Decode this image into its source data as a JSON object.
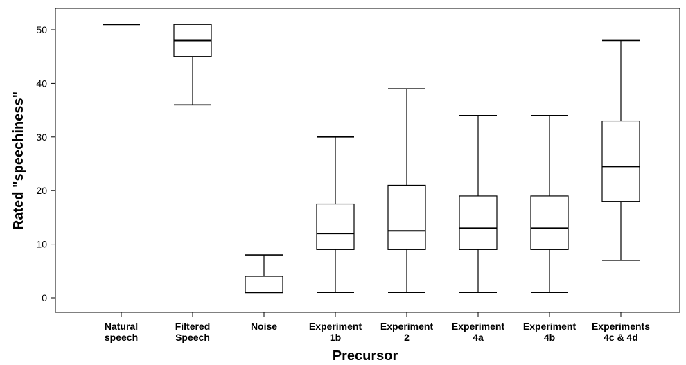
{
  "chart_data": {
    "type": "boxplot",
    "title": "",
    "xlabel": "Precursor",
    "ylabel": "Rated \"speechiness\"",
    "ylim": [
      -3,
      55
    ],
    "yticks": [
      0,
      10,
      20,
      30,
      40,
      50
    ],
    "grid": false,
    "categories": [
      [
        "Natural",
        "speech"
      ],
      [
        "Filtered",
        "Speech"
      ],
      [
        "Noise"
      ],
      [
        "Experiment",
        "1b"
      ],
      [
        "Experiment",
        "2"
      ],
      [
        "Experiment",
        "4a"
      ],
      [
        "Experiment",
        "4b"
      ],
      [
        "Experiments",
        "4c & 4d"
      ]
    ],
    "boxes": [
      {
        "min": 51,
        "q1": 51,
        "median": 51,
        "q3": 51,
        "max": 51
      },
      {
        "min": 36,
        "q1": 45,
        "median": 48,
        "q3": 51,
        "max": 51
      },
      {
        "min": 1,
        "q1": 1,
        "median": 1,
        "q3": 4,
        "max": 8
      },
      {
        "min": 1,
        "q1": 9,
        "median": 12,
        "q3": 17.5,
        "max": 30
      },
      {
        "min": 1,
        "q1": 9,
        "median": 12.5,
        "q3": 21,
        "max": 39
      },
      {
        "min": 1,
        "q1": 9,
        "median": 13,
        "q3": 19,
        "max": 34
      },
      {
        "min": 1,
        "q1": 9,
        "median": 13,
        "q3": 19,
        "max": 34
      },
      {
        "min": 7,
        "q1": 18,
        "median": 24.5,
        "q3": 33,
        "max": 48
      }
    ]
  }
}
